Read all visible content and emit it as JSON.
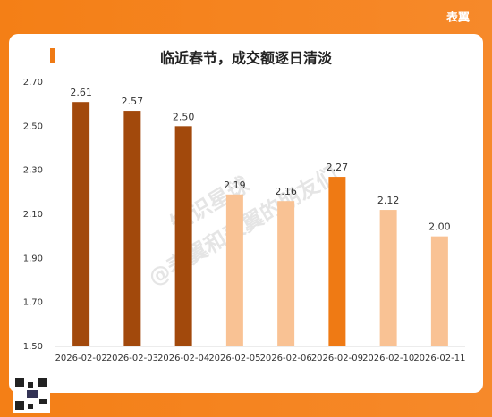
{
  "brand": "表翼",
  "watermark": [
    "知识星球",
    "@表翼和表翼的朋友们"
  ],
  "chart_data": {
    "type": "bar",
    "title": "临近春节，成交额逐日清淡",
    "categories": [
      "2026-02-02",
      "2026-02-03",
      "2026-02-04",
      "2026-02-05",
      "2026-02-06",
      "2026-02-09",
      "2026-02-10",
      "2026-02-11"
    ],
    "values": [
      2.61,
      2.57,
      2.5,
      2.19,
      2.16,
      2.27,
      2.12,
      2.0
    ],
    "value_labels": [
      "2.61",
      "2.57",
      "2.50",
      "2.19",
      "2.16",
      "2.27",
      "2.12",
      "2.00"
    ],
    "colors": [
      "#a2490c",
      "#a2490c",
      "#a2490c",
      "#f9c294",
      "#f9c294",
      "#ef7a14",
      "#f9c294",
      "#f9c294"
    ],
    "ylim": [
      1.5,
      2.7
    ],
    "yticks": [
      {
        "value": 1.5,
        "label": "1.50"
      },
      {
        "value": 1.7,
        "label": "1.70"
      },
      {
        "value": 1.9,
        "label": "1.90"
      },
      {
        "value": 2.1,
        "label": "2.10"
      },
      {
        "value": 2.3,
        "label": "2.30"
      },
      {
        "value": 2.5,
        "label": "2.50"
      },
      {
        "value": 2.7,
        "label": "2.70"
      }
    ],
    "grid": false
  }
}
